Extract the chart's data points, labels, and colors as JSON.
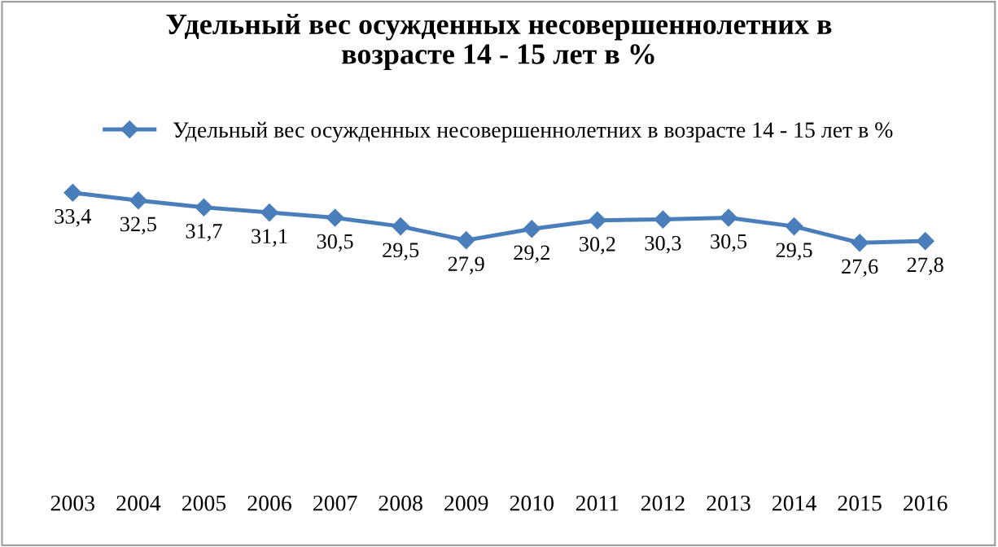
{
  "chart_data": {
    "type": "line",
    "title": "Удельный вес осужденных несовершеннолетних в\nвозрасте 14 - 15 лет в %",
    "categories": [
      "2003",
      "2004",
      "2005",
      "2006",
      "2007",
      "2008",
      "2009",
      "2010",
      "2011",
      "2012",
      "2013",
      "2014",
      "2015",
      "2016"
    ],
    "series": [
      {
        "name": "Удельный вес осужденных несовершеннолетних в возрасте 14 - 15 лет в %",
        "color": "#4a7ebb",
        "values": [
          33.4,
          32.5,
          31.7,
          31.1,
          30.5,
          29.5,
          27.9,
          29.2,
          30.2,
          30.3,
          30.5,
          29.5,
          27.6,
          27.8
        ],
        "value_labels": [
          "33,4",
          "32,5",
          "31,7",
          "31,1",
          "30,5",
          "29,5",
          "27,9",
          "29,2",
          "30,2",
          "30,3",
          "30,5",
          "29,5",
          "27,6",
          "27,8"
        ]
      }
    ],
    "relative": false,
    "marker": "diamond",
    "legend": "top",
    "grid": false
  }
}
